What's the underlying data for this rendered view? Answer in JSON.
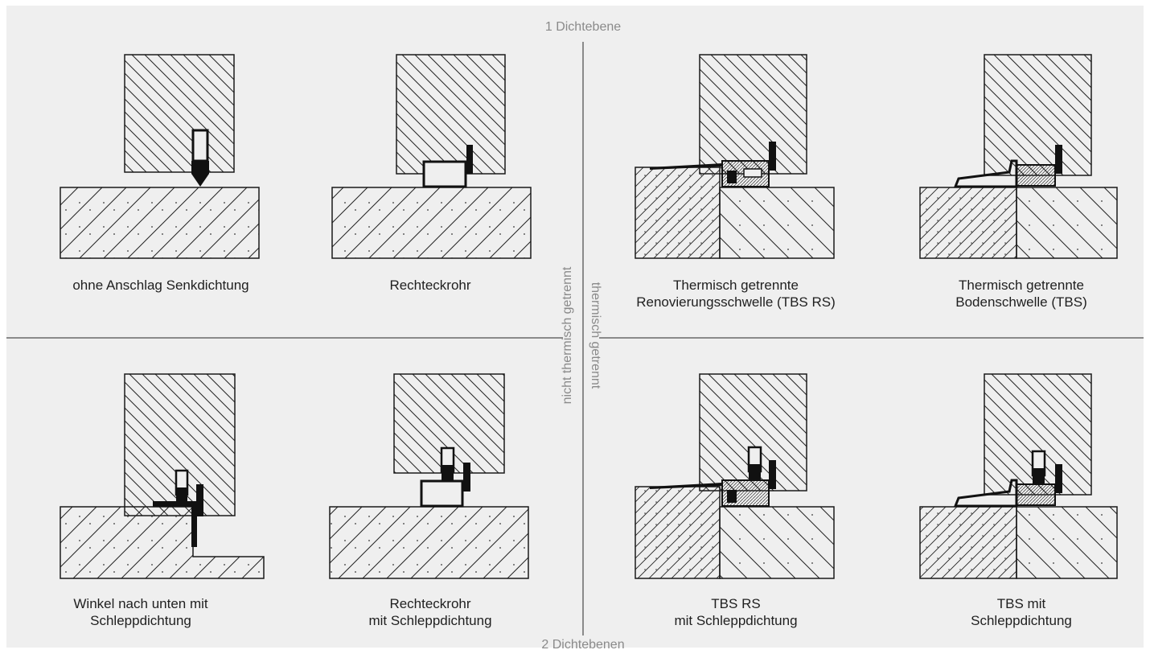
{
  "axes": {
    "top": "1 Dichtebene",
    "bottom": "2 Dichtebenen",
    "left_vertical": "nicht thermisch getrennt",
    "right_vertical": "thermisch getrennt"
  },
  "captions": {
    "c1": {
      "line1": "ohne Anschlag Senkdichtung",
      "line2": ""
    },
    "c2": {
      "line1": "Rechteckrohr",
      "line2": ""
    },
    "c3": {
      "line1": "Thermisch getrennte",
      "line2": "Renovierungsschwelle (TBS RS)"
    },
    "c4": {
      "line1": "Thermisch getrennte",
      "line2": "Bodenschwelle (TBS)"
    },
    "c5": {
      "line1": "Winkel nach unten mit",
      "line2": "Schleppdichtung"
    },
    "c6": {
      "line1": "Rechteckrohr",
      "line2": "mit Schleppdichtung"
    },
    "c7": {
      "line1": "TBS RS",
      "line2": "mit Schleppdichtung"
    },
    "c8": {
      "line1": "TBS mit",
      "line2": "Schleppdichtung"
    }
  },
  "colors": {
    "background": "#efefef",
    "divider": "#8a8a8a",
    "line": "#1a1a1a",
    "text": "#1f1f1f",
    "axis_text": "#8a8a8a"
  }
}
